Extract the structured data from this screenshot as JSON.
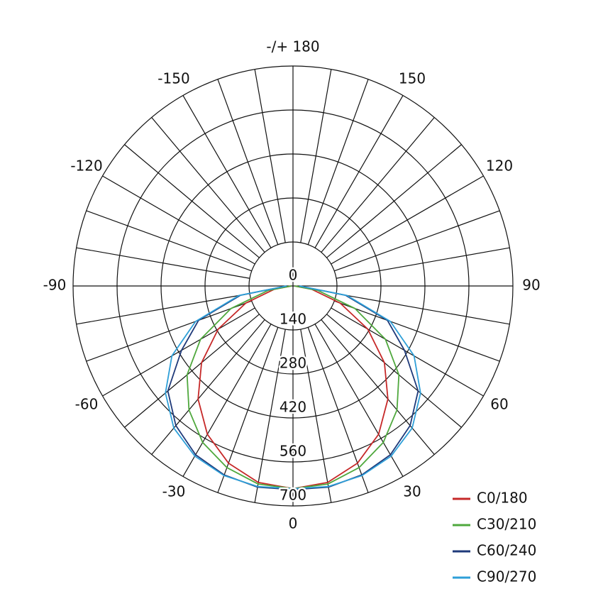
{
  "chart_data": {
    "type": "polar",
    "angles": [
      -90,
      -80,
      -70,
      -60,
      -50,
      -40,
      -30,
      -20,
      -10,
      0,
      10,
      20,
      30,
      40,
      50,
      60,
      70,
      80,
      90
    ],
    "series": [
      {
        "name": "C0/180",
        "color": "#c62828",
        "values": [
          5,
          60,
          160,
          275,
          380,
          470,
          545,
          600,
          635,
          645,
          635,
          600,
          545,
          470,
          380,
          275,
          160,
          60,
          5
        ]
      },
      {
        "name": "C30/210",
        "color": "#4fa83d",
        "values": [
          5,
          80,
          210,
          340,
          440,
          515,
          575,
          615,
          640,
          645,
          640,
          615,
          575,
          515,
          440,
          340,
          210,
          80,
          5
        ]
      },
      {
        "name": "C60/240",
        "color": "#1f3a7a",
        "values": [
          20,
          170,
          320,
          410,
          520,
          580,
          620,
          640,
          650,
          648,
          650,
          640,
          620,
          580,
          520,
          410,
          320,
          170,
          20
        ]
      },
      {
        "name": "C90/270",
        "color": "#2e9fd8",
        "values": [
          20,
          175,
          330,
          445,
          530,
          590,
          625,
          642,
          648,
          645,
          648,
          642,
          625,
          590,
          530,
          445,
          330,
          175,
          20
        ]
      }
    ],
    "rlim": [
      0,
      700
    ],
    "rticks": [
      0,
      140,
      280,
      420,
      560,
      700
    ],
    "angle_ticks": [
      0,
      30,
      60,
      90,
      120,
      150,
      {
        "value": 180,
        "label": "-/+ 180"
      },
      -150,
      -120,
      -90,
      -60,
      -30
    ]
  }
}
